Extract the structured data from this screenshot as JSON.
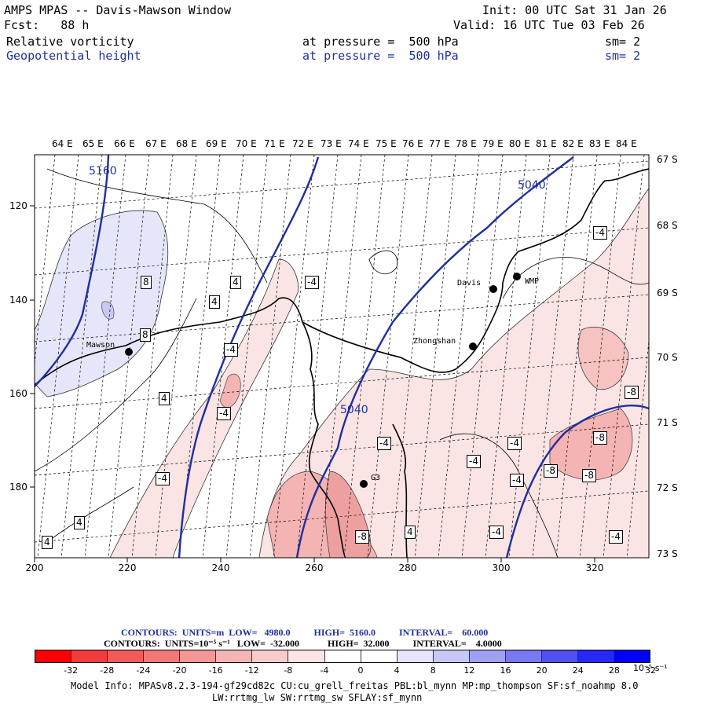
{
  "header": {
    "title": "AMPS MPAS -- Davis-Mawson Window",
    "fcst": "Fcst:   88 h",
    "init": "Init: 00 UTC Sat 31 Jan 26",
    "valid": "Valid: 16 UTC Tue 03 Feb 26",
    "field1": {
      "name": "Relative vorticity",
      "level": "at pressure =  500 hPa",
      "sm": "sm= 2"
    },
    "field2": {
      "name": "Geopotential height",
      "level": "at pressure =  500 hPa",
      "sm": "sm= 2"
    }
  },
  "axes": {
    "lon_labels": [
      "64 E",
      "65 E",
      "66 E",
      "67 E",
      "68 E",
      "69 E",
      "70 E",
      "71 E",
      "72 E",
      "73 E",
      "74 E",
      "75 E",
      "76 E",
      "77 E",
      "78 E",
      "79 E",
      "80 E",
      "81 E",
      "82 E",
      "83 E",
      "84 E"
    ],
    "lat_labels": [
      "67 S",
      "68 S",
      "69 S",
      "70 S",
      "71 S",
      "72 S",
      "73 S"
    ],
    "x_ticks": [
      "200",
      "220",
      "240",
      "260",
      "280",
      "300",
      "320"
    ],
    "y_ticks": [
      "120",
      "140",
      "160",
      "180"
    ]
  },
  "stations": [
    {
      "name": "Mawson"
    },
    {
      "name": "Davis"
    },
    {
      "name": "WMP"
    },
    {
      "name": "Zhongshan"
    },
    {
      "name": "G3"
    }
  ],
  "height_labels": [
    "5160",
    "5040",
    "5040"
  ],
  "vort_labels": [
    "8",
    "4",
    "4",
    "8",
    "4",
    "-4",
    "-4",
    "4",
    "-4",
    "-4",
    "-4",
    "-4",
    "-8",
    "-8",
    "-4",
    "-8",
    "-8",
    "-4",
    "-4",
    "4",
    "4",
    "-8",
    "-4",
    "-4"
  ],
  "footer": {
    "contours1": "CONTOURS:  UNITS=m  LOW=   4980.0          HIGH=  5160.0          INTERVAL=    60.000",
    "contours2": "CONTOURS:  UNITS=10⁻⁵ s⁻¹   LOW=  -32.000            HIGH=  32.000          INTERVAL=    4.0000",
    "colorbar_labels": [
      "-32",
      "-28",
      "-24",
      "-20",
      "-16",
      "-12",
      "-8",
      "-4",
      "0",
      "4",
      "8",
      "12",
      "16",
      "20",
      "24",
      "28",
      "32"
    ],
    "colorbar_units": "10⁻⁵ s⁻¹",
    "colorbar_colors": [
      "#ff0000",
      "#f23c3c",
      "#f25a5a",
      "#f27878",
      "#f29696",
      "#f4b4b4",
      "#f8cccc",
      "#fce4e4",
      "#ffffff",
      "#ffffff",
      "#e4e4fc",
      "#c8c8f8",
      "#a0a0f4",
      "#7878f0",
      "#5050f0",
      "#2828f4",
      "#0000ff"
    ],
    "model_info1": "Model Info: MPASv8.2.3-194-gf29cd82c CU:cu_grell_freitas PBL:bl_mynn MP:mp_thompson SF:sf_noahmp 8.0",
    "model_info2": "LW:rrtmg_lw SW:rrtmg_sw SFLAY:sf_mynn"
  },
  "colors": {
    "height_contour": "#1f2f9e",
    "pos_vort": "#f4b4b4",
    "neg_vort": "#c8c8f8"
  }
}
